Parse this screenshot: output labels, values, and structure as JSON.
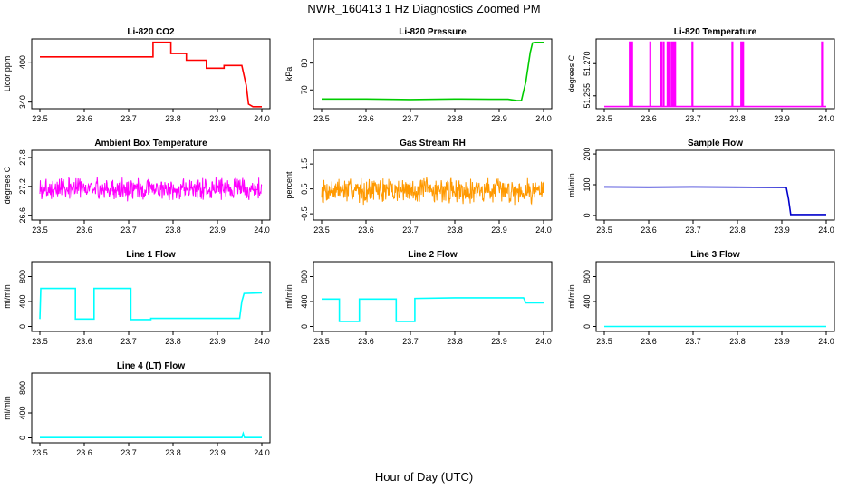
{
  "figure": {
    "title": "NWR_160413  1 Hz Diagnostics Zoomed PM",
    "xlabel": "Hour of Day (UTC)"
  },
  "chart_data": [
    {
      "type": "line",
      "title": "Li-820 CO2",
      "ylabel": "Licor ppm",
      "xlim": [
        23.5,
        24.0
      ],
      "ylim": [
        330,
        435
      ],
      "xticks": [
        "23.5",
        "23.6",
        "23.7",
        "23.8",
        "23.9",
        "24.0"
      ],
      "yticks": [
        "340",
        "400"
      ],
      "color": "#ff0000",
      "series": [
        {
          "x": [
            23.5,
            23.755,
            23.755,
            23.795,
            23.795,
            23.83,
            23.83,
            23.875,
            23.875,
            23.915,
            23.915,
            23.935,
            23.935,
            23.955,
            23.965,
            23.97,
            23.98,
            24.0
          ],
          "y": [
            408,
            408,
            430,
            430,
            413,
            413,
            403,
            403,
            391,
            391,
            395,
            395,
            395,
            395,
            365,
            337,
            333,
            333
          ]
        }
      ]
    },
    {
      "type": "line",
      "title": "Li-820 Pressure",
      "ylabel": "kPa",
      "xlim": [
        23.5,
        24.0
      ],
      "ylim": [
        63,
        89
      ],
      "xticks": [
        "23.5",
        "23.6",
        "23.7",
        "23.8",
        "23.9",
        "24.0"
      ],
      "yticks": [
        "70",
        "80"
      ],
      "color": "#00cc00",
      "series": [
        {
          "x": [
            23.5,
            23.6,
            23.7,
            23.8,
            23.88,
            23.92,
            23.94,
            23.95,
            23.96,
            23.97,
            23.975,
            23.98,
            24.0
          ],
          "y": [
            66.6,
            66.6,
            66.4,
            66.6,
            66.5,
            66.5,
            66.0,
            66.0,
            73.0,
            84.0,
            87.5,
            87.7,
            87.7
          ]
        }
      ]
    },
    {
      "type": "line",
      "title": "Li-820 Temperature",
      "ylabel": "degrees C",
      "xlim": [
        23.5,
        24.0
      ],
      "ylim": [
        51.249,
        51.2815
      ],
      "xticks": [
        "23.5",
        "23.6",
        "23.7",
        "23.8",
        "23.9",
        "24.0"
      ],
      "yticks": [
        "51.255",
        "51.270"
      ],
      "color": "#ff00ff",
      "baseline": 51.25,
      "spike_top": 51.28,
      "spikes_x": [
        23.557,
        23.562,
        23.603,
        23.628,
        23.633,
        23.642,
        23.646,
        23.651,
        23.655,
        23.659,
        23.698,
        23.788,
        23.808,
        23.812,
        23.99
      ]
    },
    {
      "type": "line",
      "title": "Ambient Box Temperature",
      "ylabel": "degrees C",
      "xlim": [
        23.5,
        24.0
      ],
      "ylim": [
        26.5,
        27.95
      ],
      "xticks": [
        "23.5",
        "23.6",
        "23.7",
        "23.8",
        "23.9",
        "24.0"
      ],
      "yticks": [
        "26.6",
        "27.2",
        "27.8"
      ],
      "color": "#ff00ff",
      "noise": {
        "mean": 27.15,
        "amp": 0.27,
        "n": 500,
        "seed": 3
      }
    },
    {
      "type": "line",
      "title": "Gas Stream RH",
      "ylabel": "percent",
      "xlim": [
        23.5,
        24.0
      ],
      "ylim": [
        -0.75,
        2.05
      ],
      "xticks": [
        "23.5",
        "23.6",
        "23.7",
        "23.8",
        "23.9",
        "24.0"
      ],
      "yticks": [
        "-0.5",
        "0.5",
        "1.5"
      ],
      "color": "#ff9900",
      "noise": {
        "mean": 0.45,
        "amp": 0.6,
        "n": 500,
        "seed": 7
      }
    },
    {
      "type": "line",
      "title": "Sample Flow",
      "ylabel": "ml/min",
      "xlim": [
        23.5,
        24.0
      ],
      "ylim": [
        -15,
        212
      ],
      "xticks": [
        "23.5",
        "23.6",
        "23.7",
        "23.8",
        "23.9",
        "24.0"
      ],
      "yticks": [
        "0",
        "100",
        "200"
      ],
      "color": "#0000cc",
      "series": [
        {
          "x": [
            23.5,
            23.6,
            23.7,
            23.8,
            23.91,
            23.915,
            23.92,
            24.0
          ],
          "y": [
            93,
            92,
            93,
            92,
            91,
            55,
            3,
            3
          ]
        }
      ]
    },
    {
      "type": "line",
      "title": "Line 1 Flow",
      "ylabel": "ml/min",
      "xlim": [
        23.5,
        24.0
      ],
      "ylim": [
        -80,
        1040
      ],
      "xticks": [
        "23.5",
        "23.6",
        "23.7",
        "23.8",
        "23.9",
        "24.0"
      ],
      "yticks": [
        "0",
        "400",
        "800"
      ],
      "color": "#00ffff",
      "series": [
        {
          "x": [
            23.5,
            23.502,
            23.58,
            23.58,
            23.622,
            23.622,
            23.705,
            23.705,
            23.75,
            23.75,
            23.95,
            23.955,
            23.96,
            24.0
          ],
          "y": [
            120,
            610,
            610,
            120,
            120,
            610,
            610,
            110,
            110,
            130,
            130,
            400,
            530,
            540
          ]
        }
      ]
    },
    {
      "type": "line",
      "title": "Line 2 Flow",
      "ylabel": "ml/min",
      "xlim": [
        23.5,
        24.0
      ],
      "ylim": [
        -80,
        1040
      ],
      "xticks": [
        "23.5",
        "23.6",
        "23.7",
        "23.8",
        "23.9",
        "24.0"
      ],
      "yticks": [
        "0",
        "400",
        "800"
      ],
      "color": "#00ffff",
      "series": [
        {
          "x": [
            23.5,
            23.54,
            23.54,
            23.585,
            23.585,
            23.668,
            23.668,
            23.71,
            23.71,
            23.8,
            23.955,
            23.96,
            24.0
          ],
          "y": [
            440,
            440,
            80,
            80,
            440,
            440,
            80,
            80,
            450,
            460,
            460,
            380,
            380
          ]
        }
      ]
    },
    {
      "type": "line",
      "title": "Line 3 Flow",
      "ylabel": "ml/min",
      "xlim": [
        23.5,
        24.0
      ],
      "ylim": [
        -80,
        1040
      ],
      "xticks": [
        "23.5",
        "23.6",
        "23.7",
        "23.8",
        "23.9",
        "24.0"
      ],
      "yticks": [
        "0",
        "400",
        "800"
      ],
      "color": "#00ffff",
      "series": [
        {
          "x": [
            23.5,
            24.0
          ],
          "y": [
            0,
            0
          ]
        }
      ]
    },
    {
      "type": "line",
      "title": "Line 4 (LT) Flow",
      "ylabel": "ml/min",
      "xlim": [
        23.5,
        24.0
      ],
      "ylim": [
        -80,
        1040
      ],
      "xticks": [
        "23.5",
        "23.6",
        "23.7",
        "23.8",
        "23.9",
        "24.0"
      ],
      "yticks": [
        "0",
        "400",
        "800"
      ],
      "color": "#00ffff",
      "series": [
        {
          "x": [
            23.5,
            23.955,
            23.958,
            23.961,
            23.964,
            24.0
          ],
          "y": [
            5,
            5,
            70,
            5,
            5,
            5
          ]
        }
      ]
    }
  ]
}
